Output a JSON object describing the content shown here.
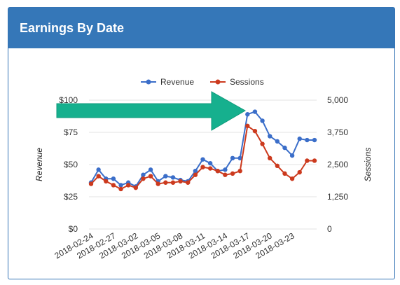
{
  "panel": {
    "title": "Earnings By Date"
  },
  "colors": {
    "header": "#3577b8",
    "revenue": "#3b6ec9",
    "sessions": "#cc3a1e",
    "arrow": "#16b08e",
    "grid": "#e3e3e3"
  },
  "chart_data": {
    "type": "line",
    "title": "",
    "ylabel": "Revenue",
    "y2label": "Sessions",
    "legend_position": "top-center",
    "grid": true,
    "ylim": [
      0,
      100
    ],
    "y2lim": [
      0,
      5000
    ],
    "yticks": [
      "$0",
      "$25",
      "$50",
      "$75",
      "$100"
    ],
    "y2ticks": [
      "0",
      "1,250",
      "2,500",
      "3,750",
      "5,000"
    ],
    "xtick_labels": [
      "2018-02-24",
      "2018-02-27",
      "2018-03-02",
      "2018-03-05",
      "2018-03-08",
      "2018-03-11",
      "2018-03-14",
      "2018-03-17",
      "2018-03-20",
      "2018-03-23"
    ],
    "x": [
      "2018-02-24",
      "2018-02-25",
      "2018-02-26",
      "2018-02-27",
      "2018-02-28",
      "2018-03-01",
      "2018-03-02",
      "2018-03-03",
      "2018-03-04",
      "2018-03-05",
      "2018-03-06",
      "2018-03-07",
      "2018-03-08",
      "2018-03-09",
      "2018-03-10",
      "2018-03-11",
      "2018-03-12",
      "2018-03-13",
      "2018-03-14",
      "2018-03-15",
      "2018-03-16",
      "2018-03-17",
      "2018-03-18",
      "2018-03-19",
      "2018-03-20",
      "2018-03-21",
      "2018-03-22",
      "2018-03-23",
      "2018-03-24",
      "2018-03-25",
      "2018-03-26"
    ],
    "series": [
      {
        "name": "Revenue",
        "axis": "left",
        "values": [
          36,
          46,
          39,
          39,
          34,
          36,
          33,
          42,
          46,
          37,
          41,
          40,
          38,
          37,
          45,
          54,
          51,
          45,
          46,
          55,
          55,
          89,
          91,
          84,
          72,
          68,
          63,
          57,
          70,
          69,
          69
        ]
      },
      {
        "name": "Sessions",
        "axis": "right",
        "values": [
          1750,
          2050,
          1850,
          1700,
          1550,
          1700,
          1600,
          1950,
          2050,
          1750,
          1800,
          1800,
          1850,
          1800,
          2100,
          2400,
          2350,
          2250,
          2100,
          2150,
          2250,
          4000,
          3800,
          3300,
          2750,
          2450,
          2150,
          1950,
          2200,
          2650,
          2650
        ]
      }
    ],
    "annotations": [
      {
        "type": "arrow",
        "points_to": "2018-03-17"
      }
    ]
  }
}
